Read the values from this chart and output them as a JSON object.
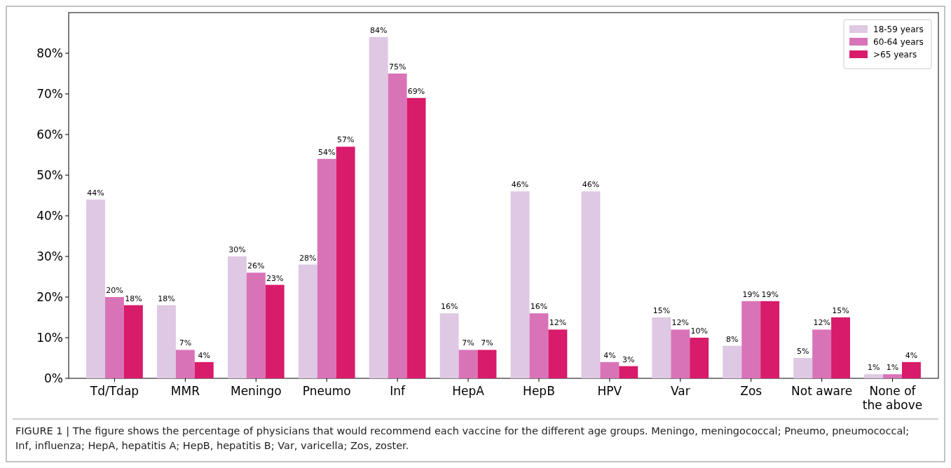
{
  "chart_data": {
    "type": "bar",
    "categories": [
      "Td/Tdap",
      "MMR",
      "Meningo",
      "Pneumo",
      "Inf",
      "HepA",
      "HepB",
      "HPV",
      "Var",
      "Zos",
      "Not aware",
      "None of the above"
    ],
    "series": [
      {
        "name": "18-59 years",
        "color": "#dfc8e3",
        "values": [
          44,
          18,
          30,
          28,
          84,
          16,
          46,
          46,
          15,
          8,
          5,
          1
        ],
        "value_labels": [
          "44%",
          "18%",
          "30%",
          "28%",
          "84%",
          "16%",
          "46%",
          "46%",
          "15%",
          "8%",
          "5%",
          "1%"
        ]
      },
      {
        "name": "60-64 years",
        "color": "#d973b8",
        "values": [
          20,
          7,
          26,
          54,
          75,
          7,
          16,
          4,
          12,
          19,
          12,
          1
        ],
        "value_labels": [
          "20%",
          "7%",
          "26%",
          "54%",
          "75%",
          "7%",
          "16%",
          "4%",
          "12%",
          "19%",
          "12%",
          "1%"
        ]
      },
      {
        "name": ">65 years",
        "color": "#d81b6a",
        "values": [
          18,
          4,
          23,
          57,
          69,
          7,
          12,
          3,
          10,
          19,
          15,
          4
        ],
        "value_labels": [
          "18%",
          "4%",
          "23%",
          "57%",
          "69%",
          "7%",
          "12%",
          "3%",
          "10%",
          "19%",
          "15%",
          "4%"
        ]
      }
    ],
    "ylim": [
      0,
      90
    ],
    "yticks": [
      {
        "value": 0,
        "label": "0%"
      },
      {
        "value": 10,
        "label": "10%"
      },
      {
        "value": 20,
        "label": "20%"
      },
      {
        "value": 30,
        "label": "30%"
      },
      {
        "value": 40,
        "label": "40%"
      },
      {
        "value": 50,
        "label": "50%"
      },
      {
        "value": 60,
        "label": "60%"
      },
      {
        "value": 70,
        "label": "70%"
      },
      {
        "value": 80,
        "label": "80%"
      }
    ],
    "legend": "top right",
    "annotations": [
      "FIGURE 1 | The figure shows the percentage of physicians that would recommend each vaccine for the different age groups. Meningo, meningococcal; Pneumo, pneumococcal; Inf, influenza; HepA, hepatitis A; HepB, hepatitis B; Var, varicella; Zos, zoster."
    ]
  }
}
